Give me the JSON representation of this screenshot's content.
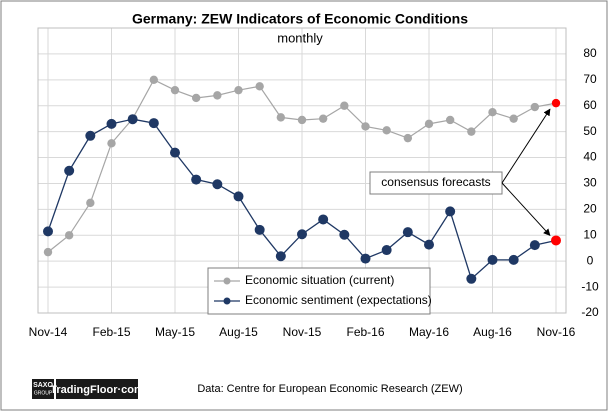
{
  "chart_data": {
    "type": "line",
    "title": "Germany: ZEW Indicators of Economic Conditions",
    "subtitle": "monthly",
    "categories": [
      "Nov-14",
      null,
      null,
      "Feb-15",
      null,
      null,
      "May-15",
      null,
      null,
      "Aug-15",
      null,
      null,
      "Nov-15",
      null,
      null,
      "Feb-16",
      null,
      null,
      "May-16",
      null,
      null,
      "Aug-16",
      null,
      null,
      "Nov-16"
    ],
    "series": [
      {
        "name": "Economic situation (current)",
        "color": "#a6a6a6",
        "values": [
          3.5,
          10,
          22.5,
          45.5,
          55,
          70,
          66,
          63,
          64,
          66,
          67.5,
          55.5,
          54.5,
          55,
          60,
          52,
          50.5,
          47.5,
          53,
          54.5,
          50,
          57.5,
          55,
          59.5,
          61
        ]
      },
      {
        "name": "Economic sentiment (expectations)",
        "color": "#1f3864",
        "values": [
          11.5,
          34.9,
          48.4,
          53,
          54.8,
          53.3,
          41.9,
          31.5,
          29.7,
          25,
          12.1,
          1.9,
          10.4,
          16.1,
          10.2,
          1,
          4.3,
          11.2,
          6.4,
          19.2,
          -6.8,
          0.5,
          0.5,
          6.2,
          8
        ]
      }
    ],
    "forecast_color": "#ff0000",
    "annotation": "consensus forecasts",
    "source": "Data: Centre for European Economic Research (ZEW)",
    "brand": "TradingFloor·com",
    "logo": [
      "SAXO",
      "GROUP"
    ],
    "ylim": [
      -20,
      90
    ],
    "yticks": [
      -20,
      -10,
      0,
      10,
      20,
      30,
      40,
      50,
      60,
      70,
      80
    ],
    "grid": true,
    "legend": "bottom"
  }
}
